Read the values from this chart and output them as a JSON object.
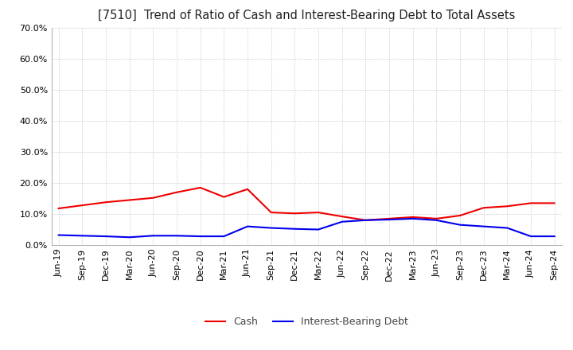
{
  "title": "[7510]  Trend of Ratio of Cash and Interest-Bearing Debt to Total Assets",
  "x_labels": [
    "Jun-19",
    "Sep-19",
    "Dec-19",
    "Mar-20",
    "Jun-20",
    "Sep-20",
    "Dec-20",
    "Mar-21",
    "Jun-21",
    "Sep-21",
    "Dec-21",
    "Mar-22",
    "Jun-22",
    "Sep-22",
    "Dec-22",
    "Mar-23",
    "Jun-23",
    "Sep-23",
    "Dec-23",
    "Mar-24",
    "Jun-24",
    "Sep-24"
  ],
  "cash": [
    11.8,
    12.8,
    13.8,
    14.5,
    15.2,
    17.0,
    18.5,
    15.5,
    18.0,
    10.5,
    10.2,
    10.5,
    9.2,
    8.0,
    8.5,
    9.0,
    8.5,
    9.5,
    12.0,
    12.5,
    13.5,
    13.5
  ],
  "interest_bearing_debt": [
    3.2,
    3.0,
    2.8,
    2.5,
    3.0,
    3.0,
    2.8,
    2.8,
    6.0,
    5.5,
    5.2,
    5.0,
    7.5,
    8.0,
    8.2,
    8.5,
    8.0,
    6.5,
    6.0,
    5.5,
    2.8,
    2.8
  ],
  "cash_color": "#ee0000",
  "debt_color": "#0000ee",
  "ylim": [
    0,
    70
  ],
  "yticks": [
    0,
    10,
    20,
    30,
    40,
    50,
    60,
    70
  ],
  "background_color": "#ffffff",
  "grid_color": "#aaaaaa",
  "title_fontsize": 10.5,
  "tick_fontsize": 8,
  "legend_fontsize": 9
}
